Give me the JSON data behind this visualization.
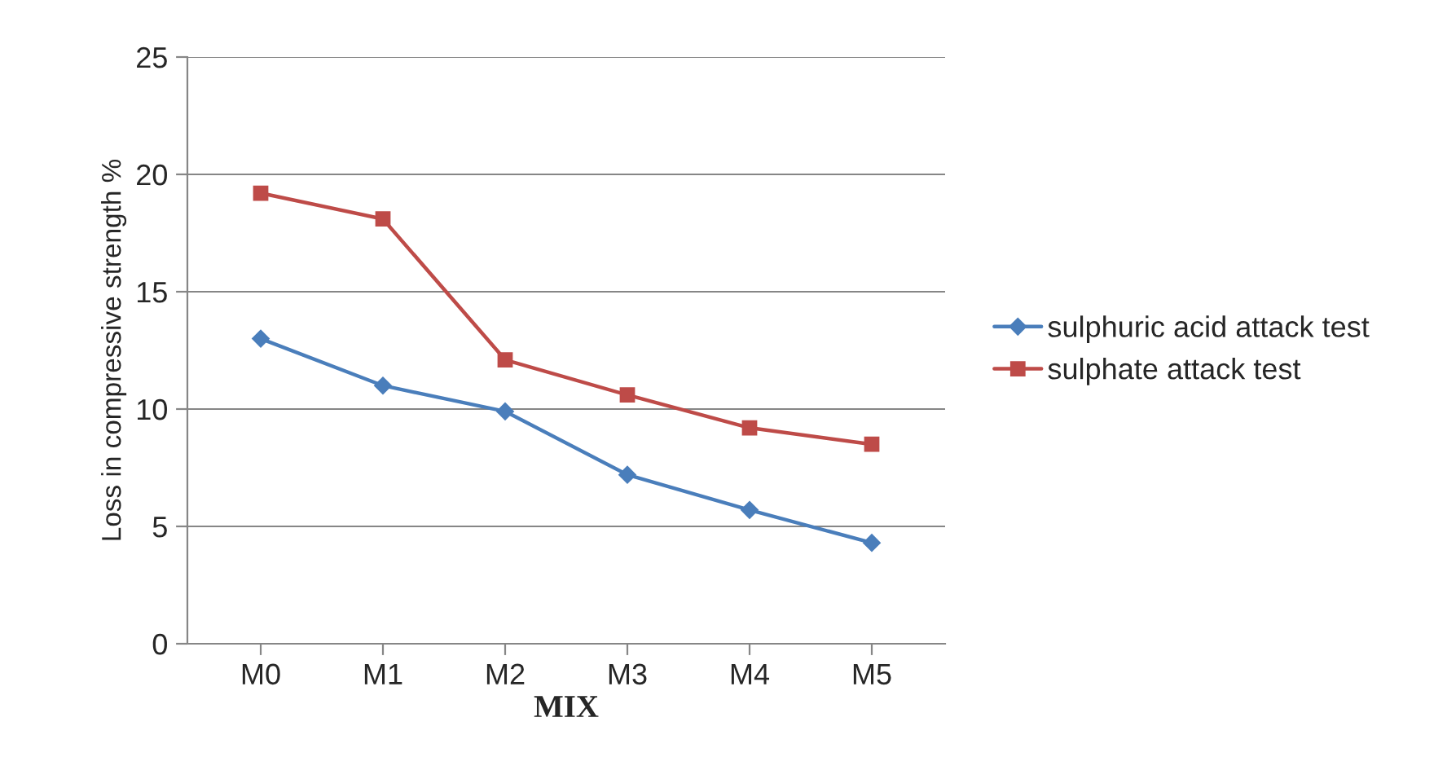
{
  "chart_data": {
    "type": "line",
    "xlabel": "MIX",
    "ylabel": "Loss in compressive strength %",
    "categories": [
      "M0",
      "M1",
      "M2",
      "M3",
      "M4",
      "M5"
    ],
    "series": [
      {
        "name": "sulphuric acid attack test",
        "color": "#4a7ebb",
        "values": [
          13.0,
          11.0,
          9.9,
          7.2,
          5.7,
          4.3
        ],
        "marker": "diamond"
      },
      {
        "name": "sulphate attack test",
        "color": "#be4b48",
        "values": [
          19.2,
          18.1,
          12.1,
          10.6,
          9.2,
          8.5
        ],
        "marker": "square"
      }
    ],
    "ylim": [
      0,
      25
    ],
    "yticks": [
      0,
      5,
      10,
      15,
      20,
      25
    ],
    "grid": "y",
    "legend": "right",
    "line_style": "solid"
  }
}
